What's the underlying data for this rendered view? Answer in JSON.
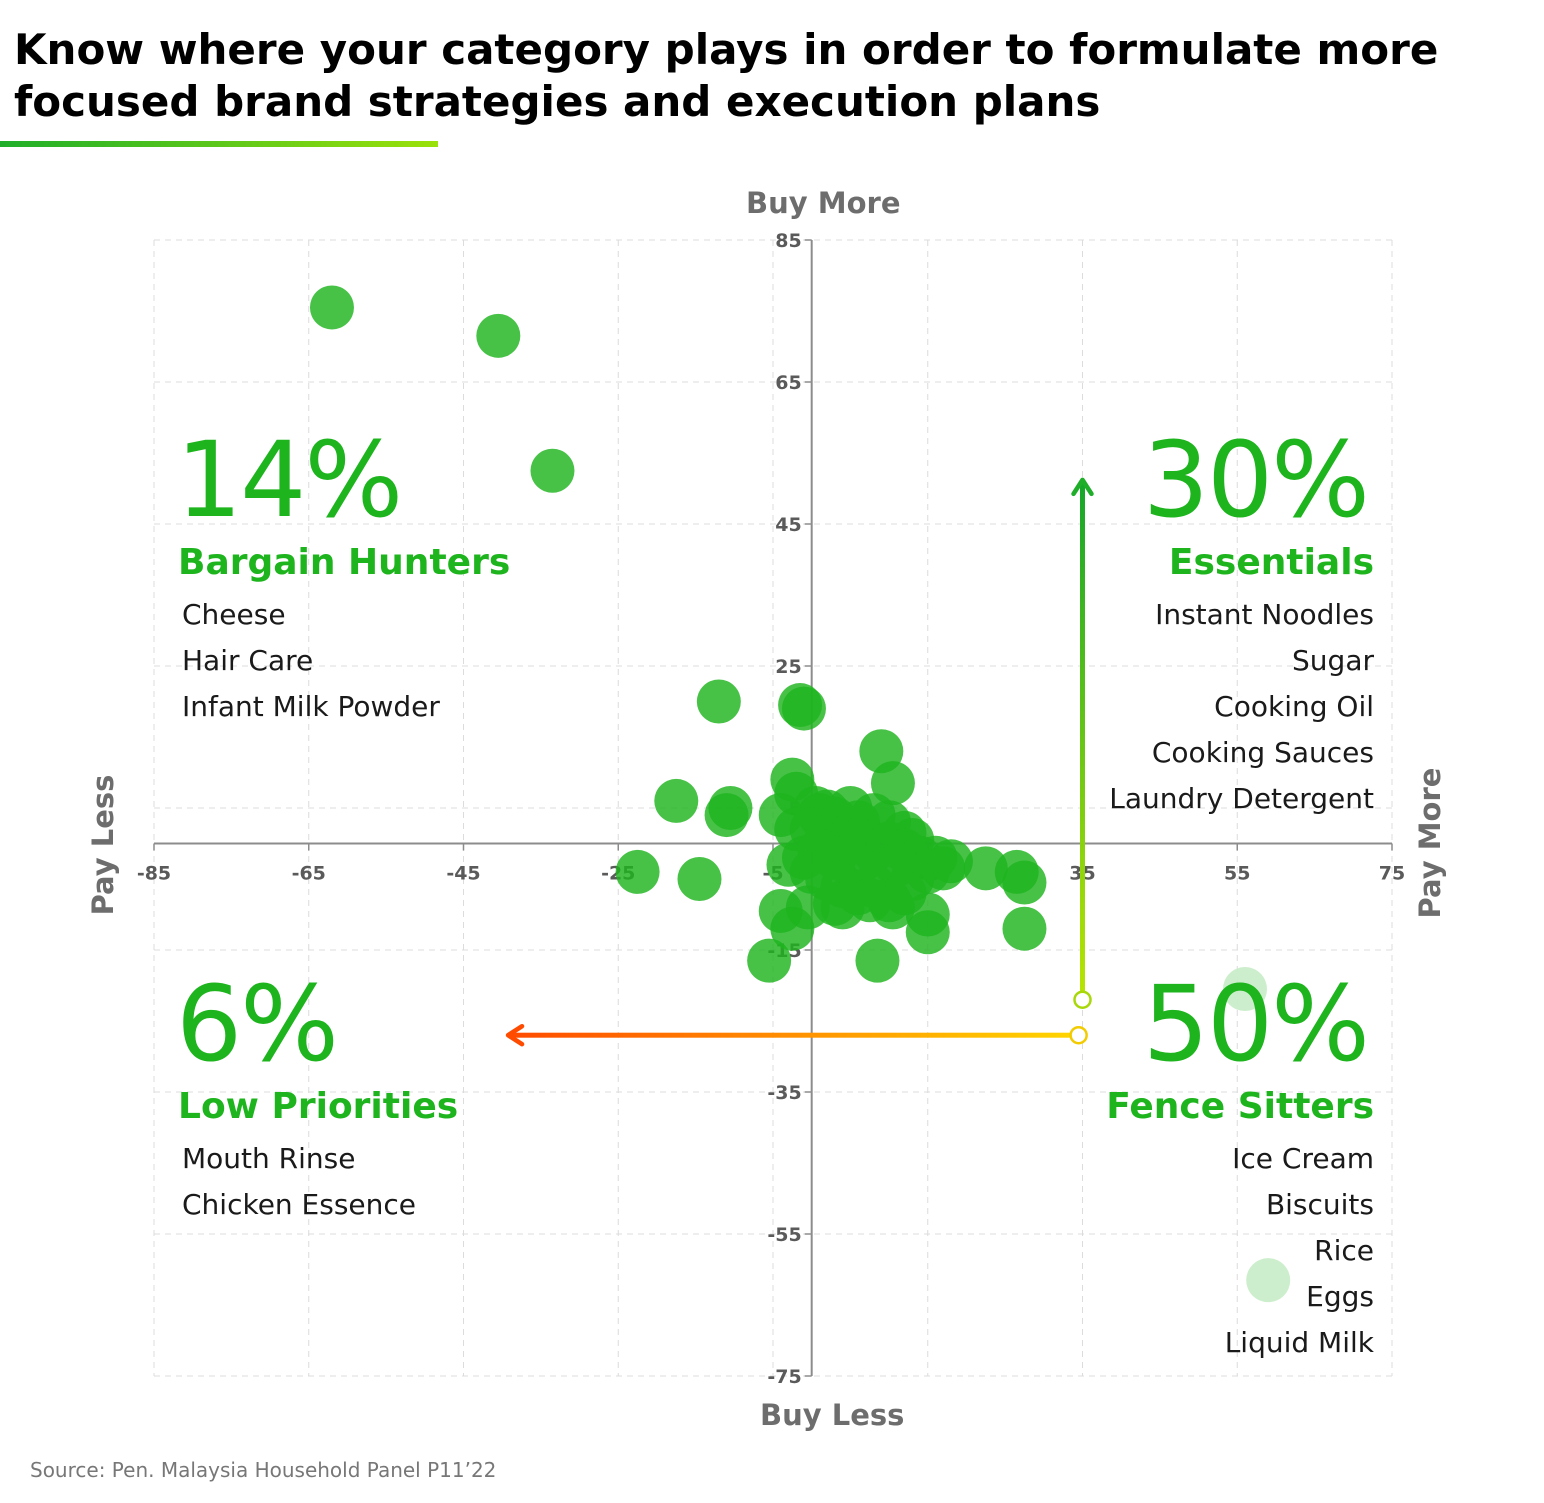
{
  "title": "Know where your category plays in order to formulate more focused brand strategies and execution plans",
  "source": "Source: Pen. Malaysia Household Panel P11’22",
  "colors": {
    "accent": "#1eb41e",
    "bubble": "#1fb41f",
    "faded_bubble": "#c6ecc6",
    "arrow_up": "#1fae2a",
    "arrow_left": "#ff4b00"
  },
  "quadrants": {
    "top_left": {
      "percent": "14%",
      "name": "Bargain Hunters",
      "items": [
        "Cheese",
        "Hair Care",
        "Infant Milk Powder"
      ]
    },
    "top_right": {
      "percent": "30%",
      "name": "Essentials",
      "items": [
        "Instant Noodles",
        "Sugar",
        "Cooking Oil",
        "Cooking Sauces",
        "Laundry Detergent"
      ]
    },
    "bottom_left": {
      "percent": "6%",
      "name": "Low Priorities",
      "items": [
        "Mouth Rinse",
        "Chicken Essence"
      ]
    },
    "bottom_right": {
      "percent": "50%",
      "name": "Fence Sitters",
      "items": [
        "Ice Cream",
        "Biscuits",
        "Rice",
        "Eggs",
        "Liquid Milk"
      ]
    }
  },
  "chart_data": {
    "type": "scatter",
    "xlabel_left": "Pay Less",
    "xlabel_right": "Pay More",
    "ylabel_top": "Buy More",
    "ylabel_bottom": "Buy Less",
    "xlim": [
      -85,
      75
    ],
    "ylim": [
      -75,
      85
    ],
    "x_ticks": [
      "-85",
      "-65",
      "-45",
      "-25",
      "-5",
      "15",
      "35",
      "55",
      "75"
    ],
    "y_ticks": [
      "85",
      "65",
      "45",
      "25",
      "5",
      "-15",
      "-35",
      "-55",
      "-75"
    ],
    "grid": true,
    "points": [
      {
        "x": -62,
        "y": 75.5
      },
      {
        "x": -40.5,
        "y": 71.5
      },
      {
        "x": -33.5,
        "y": 52.5
      },
      {
        "x": -12,
        "y": 20
      },
      {
        "x": -1.5,
        "y": 19.5
      },
      {
        "x": -1,
        "y": 19
      },
      {
        "x": 9,
        "y": 13
      },
      {
        "x": 10.5,
        "y": 8.5
      },
      {
        "x": -2.5,
        "y": 9
      },
      {
        "x": -2,
        "y": 7
      },
      {
        "x": 0.5,
        "y": 5
      },
      {
        "x": 2,
        "y": 4.5
      },
      {
        "x": 5,
        "y": 5
      },
      {
        "x": -17.5,
        "y": 6
      },
      {
        "x": -10.5,
        "y": 5
      },
      {
        "x": -11,
        "y": 4
      },
      {
        "x": 1,
        "y": 4
      },
      {
        "x": 3,
        "y": 3.5
      },
      {
        "x": 6,
        "y": 3
      },
      {
        "x": 8,
        "y": 4
      },
      {
        "x": 10,
        "y": 3
      },
      {
        "x": 12,
        "y": 1.5
      },
      {
        "x": 13,
        "y": 0.5
      },
      {
        "x": -4,
        "y": 4
      },
      {
        "x": -2,
        "y": 2
      },
      {
        "x": 0,
        "y": 2
      },
      {
        "x": 2,
        "y": 1
      },
      {
        "x": 4,
        "y": 0
      },
      {
        "x": 6,
        "y": 0.5
      },
      {
        "x": 8,
        "y": -1
      },
      {
        "x": 10,
        "y": 0
      },
      {
        "x": 12,
        "y": -1
      },
      {
        "x": 14,
        "y": -2
      },
      {
        "x": 16,
        "y": -2
      },
      {
        "x": 18,
        "y": -2.5
      },
      {
        "x": 17,
        "y": -3.5
      },
      {
        "x": 15,
        "y": -4
      },
      {
        "x": -22.5,
        "y": -4
      },
      {
        "x": -14.5,
        "y": -5
      },
      {
        "x": -3,
        "y": -3
      },
      {
        "x": -1,
        "y": -2
      },
      {
        "x": 1,
        "y": -1
      },
      {
        "x": 3,
        "y": -2
      },
      {
        "x": 5,
        "y": -3
      },
      {
        "x": 7,
        "y": -2
      },
      {
        "x": 9,
        "y": -4
      },
      {
        "x": 11,
        "y": -3
      },
      {
        "x": 13,
        "y": -5
      },
      {
        "x": 22.5,
        "y": -3.5
      },
      {
        "x": 26.5,
        "y": -4
      },
      {
        "x": 27.5,
        "y": -5.5
      },
      {
        "x": 0,
        "y": -4
      },
      {
        "x": 2,
        "y": -5
      },
      {
        "x": 4,
        "y": -6
      },
      {
        "x": 6,
        "y": -7
      },
      {
        "x": 8,
        "y": -6
      },
      {
        "x": 10,
        "y": -8
      },
      {
        "x": 12,
        "y": -7
      },
      {
        "x": -4,
        "y": -9.5
      },
      {
        "x": -0.5,
        "y": -9
      },
      {
        "x": 3,
        "y": -8.5
      },
      {
        "x": 4,
        "y": -9
      },
      {
        "x": 7.5,
        "y": -8
      },
      {
        "x": 10.5,
        "y": -9
      },
      {
        "x": 15,
        "y": -10
      },
      {
        "x": 15,
        "y": -12.5
      },
      {
        "x": -2.5,
        "y": -12
      },
      {
        "x": 27.5,
        "y": -12
      },
      {
        "x": -5.5,
        "y": -16.5
      },
      {
        "x": 8.5,
        "y": -16.5
      }
    ],
    "faded_points": [
      {
        "x": 56,
        "y": -20.5
      },
      {
        "x": 59,
        "y": -61.5
      }
    ],
    "annotations": [
      {
        "type": "arrow",
        "from": [
          34.5,
          -27
        ],
        "to": [
          -39.5,
          -27
        ],
        "color": "gradient yellow-to-orange"
      },
      {
        "type": "arrow",
        "from": [
          35,
          -22
        ],
        "to": [
          35,
          51.5
        ],
        "color": "gradient light-to-dark green"
      }
    ]
  }
}
